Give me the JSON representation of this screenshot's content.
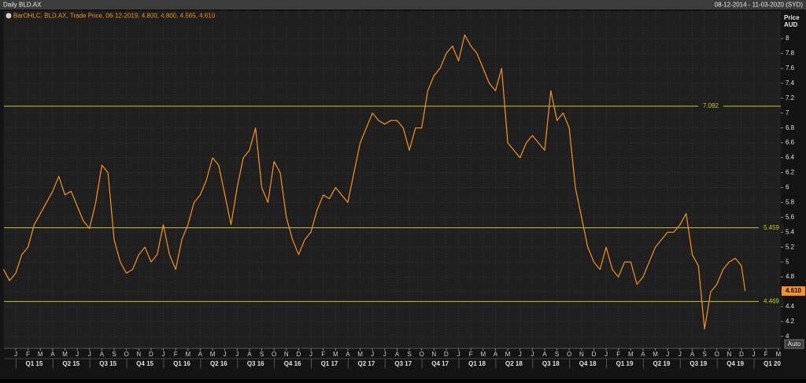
{
  "chart_data": {
    "type": "line",
    "title": "Daily BLD.AX",
    "date_range": "08-12-2014 - 11-03-2020 (SYD)",
    "legend_text": "BarOHLC, BLD.AX, Trade Price, 06-12-2019, 4.800, 4.800, 4.565, 4.610",
    "y_axis_label": "Price",
    "y_axis_unit": "AUD",
    "button": "Auto",
    "grid": true,
    "xlim": [
      -0.96,
      62.2
    ],
    "ylim": [
      3.84,
      8.37
    ],
    "yticks": [
      4,
      4.2,
      4.4,
      4.6,
      4.8,
      5,
      5.2,
      5.4,
      5.6,
      5.8,
      6,
      6.2,
      6.4,
      6.6,
      6.8,
      7,
      7.2,
      7.4,
      7.6,
      7.8,
      8
    ],
    "xticks": [
      {
        "value": 0,
        "label": "J"
      },
      {
        "value": 1,
        "label": "F"
      },
      {
        "value": 2,
        "label": "M"
      },
      {
        "value": 3,
        "label": "A"
      },
      {
        "value": 4,
        "label": "M"
      },
      {
        "value": 5,
        "label": "J"
      },
      {
        "value": 6,
        "label": "J"
      },
      {
        "value": 7,
        "label": "A"
      },
      {
        "value": 8,
        "label": "S"
      },
      {
        "value": 9,
        "label": "O"
      },
      {
        "value": 10,
        "label": "N"
      },
      {
        "value": 11,
        "label": "D"
      },
      {
        "value": 12,
        "label": "J"
      },
      {
        "value": 13,
        "label": "F"
      },
      {
        "value": 14,
        "label": "M"
      },
      {
        "value": 15,
        "label": "A"
      },
      {
        "value": 16,
        "label": "M"
      },
      {
        "value": 17,
        "label": "J"
      },
      {
        "value": 18,
        "label": "J"
      },
      {
        "value": 19,
        "label": "A"
      },
      {
        "value": 20,
        "label": "S"
      },
      {
        "value": 21,
        "label": "O"
      },
      {
        "value": 22,
        "label": "N"
      },
      {
        "value": 23,
        "label": "D"
      },
      {
        "value": 24,
        "label": "J"
      },
      {
        "value": 25,
        "label": "F"
      },
      {
        "value": 26,
        "label": "M"
      },
      {
        "value": 27,
        "label": "A"
      },
      {
        "value": 28,
        "label": "M"
      },
      {
        "value": 29,
        "label": "J"
      },
      {
        "value": 30,
        "label": "J"
      },
      {
        "value": 31,
        "label": "A"
      },
      {
        "value": 32,
        "label": "S"
      },
      {
        "value": 33,
        "label": "O"
      },
      {
        "value": 34,
        "label": "N"
      },
      {
        "value": 35,
        "label": "D"
      },
      {
        "value": 36,
        "label": "J"
      },
      {
        "value": 37,
        "label": "F"
      },
      {
        "value": 38,
        "label": "M"
      },
      {
        "value": 39,
        "label": "A"
      },
      {
        "value": 40,
        "label": "M"
      },
      {
        "value": 41,
        "label": "J"
      },
      {
        "value": 42,
        "label": "J"
      },
      {
        "value": 43,
        "label": "A"
      },
      {
        "value": 44,
        "label": "S"
      },
      {
        "value": 45,
        "label": "O"
      },
      {
        "value": 46,
        "label": "N"
      },
      {
        "value": 47,
        "label": "D"
      },
      {
        "value": 48,
        "label": "J"
      },
      {
        "value": 49,
        "label": "F"
      },
      {
        "value": 50,
        "label": "M"
      },
      {
        "value": 51,
        "label": "A"
      },
      {
        "value": 52,
        "label": "M"
      },
      {
        "value": 53,
        "label": "J"
      },
      {
        "value": 54,
        "label": "J"
      },
      {
        "value": 55,
        "label": "A"
      },
      {
        "value": 56,
        "label": "S"
      },
      {
        "value": 57,
        "label": "O"
      },
      {
        "value": 58,
        "label": "N"
      },
      {
        "value": 59,
        "label": "D"
      },
      {
        "value": 60,
        "label": "J"
      },
      {
        "value": 61,
        "label": "F"
      },
      {
        "value": 62,
        "label": "M"
      }
    ],
    "quarters": [
      {
        "value": 1.5,
        "label": "Q1 15"
      },
      {
        "value": 4.5,
        "label": "Q2 15"
      },
      {
        "value": 7.5,
        "label": "Q3 15"
      },
      {
        "value": 10.5,
        "label": "Q4 15"
      },
      {
        "value": 13.5,
        "label": "Q1 16"
      },
      {
        "value": 16.5,
        "label": "Q2 16"
      },
      {
        "value": 19.5,
        "label": "Q3 16"
      },
      {
        "value": 22.5,
        "label": "Q4 16"
      },
      {
        "value": 25.5,
        "label": "Q1 17"
      },
      {
        "value": 28.5,
        "label": "Q2 17"
      },
      {
        "value": 31.5,
        "label": "Q3 17"
      },
      {
        "value": 34.5,
        "label": "Q4 17"
      },
      {
        "value": 37.5,
        "label": "Q1 18"
      },
      {
        "value": 40.5,
        "label": "Q2 18"
      },
      {
        "value": 43.5,
        "label": "Q3 18"
      },
      {
        "value": 46.5,
        "label": "Q4 18"
      },
      {
        "value": 49.5,
        "label": "Q1 19"
      },
      {
        "value": 52.5,
        "label": "Q2 19"
      },
      {
        "value": 55.5,
        "label": "Q3 19"
      },
      {
        "value": 58.5,
        "label": "Q4 19"
      },
      {
        "value": 61.5,
        "label": "Q1 20"
      }
    ],
    "levels": [
      7.092,
      5.459,
      4.469
    ],
    "level_color": "#c8c81e",
    "last_value": {
      "value": 4.61,
      "label": "4.610"
    },
    "x": [
      -1,
      -0.5,
      0,
      0.5,
      1,
      1.5,
      2,
      2.5,
      3,
      3.5,
      4,
      4.5,
      5,
      5.5,
      6,
      6.5,
      7,
      7.5,
      8,
      8.5,
      9,
      9.5,
      10,
      10.5,
      11,
      11.5,
      12,
      12.5,
      13,
      13.5,
      14,
      14.5,
      15,
      15.5,
      16,
      16.5,
      17,
      17.5,
      18,
      18.5,
      19,
      19.5,
      20,
      20.5,
      21,
      21.5,
      22,
      22.5,
      23,
      23.5,
      24,
      24.5,
      25,
      25.5,
      26,
      26.5,
      27,
      27.5,
      28,
      28.5,
      29,
      29.5,
      30,
      30.5,
      31,
      31.5,
      32,
      32.5,
      33,
      33.5,
      34,
      34.5,
      35,
      35.5,
      36,
      36.5,
      37,
      37.5,
      38,
      38.5,
      39,
      39.5,
      40,
      40.5,
      41,
      41.5,
      42,
      42.5,
      43,
      43.5,
      44,
      44.5,
      45,
      45.5,
      46,
      46.5,
      47,
      47.5,
      48,
      48.5,
      49,
      49.5,
      50,
      50.5,
      51,
      51.5,
      52,
      52.5,
      53,
      53.5,
      54,
      54.5,
      55,
      55.5,
      56,
      56.5,
      57,
      57.5,
      58,
      58.5,
      59,
      59.3
    ],
    "series": [
      {
        "name": "BLD.AX",
        "color": "#f7931e",
        "values": [
          4.9,
          4.75,
          4.85,
          5.1,
          5.2,
          5.5,
          5.65,
          5.8,
          5.95,
          6.15,
          5.9,
          5.95,
          5.75,
          5.55,
          5.45,
          5.8,
          6.3,
          6.2,
          5.3,
          5.0,
          4.85,
          4.9,
          5.1,
          5.2,
          5.0,
          5.1,
          5.5,
          5.1,
          4.9,
          5.3,
          5.5,
          5.8,
          5.9,
          6.1,
          6.4,
          6.3,
          5.9,
          5.5,
          6.0,
          6.4,
          6.5,
          6.8,
          6.0,
          5.8,
          6.35,
          6.2,
          5.6,
          5.3,
          5.1,
          5.3,
          5.4,
          5.7,
          5.9,
          5.85,
          6.0,
          5.9,
          5.8,
          6.2,
          6.6,
          6.8,
          7.0,
          6.9,
          6.85,
          6.9,
          6.9,
          6.8,
          6.5,
          6.8,
          6.8,
          7.3,
          7.5,
          7.6,
          7.8,
          7.9,
          7.7,
          8.05,
          7.9,
          7.8,
          7.6,
          7.4,
          7.3,
          7.6,
          6.6,
          6.5,
          6.4,
          6.6,
          6.7,
          6.6,
          6.5,
          7.3,
          6.9,
          7.0,
          6.8,
          6.0,
          5.6,
          5.2,
          5.0,
          4.9,
          5.2,
          4.9,
          4.8,
          5.0,
          5.0,
          4.7,
          4.8,
          5.0,
          5.2,
          5.3,
          5.4,
          5.4,
          5.5,
          5.65,
          5.1,
          4.95,
          4.1,
          4.6,
          4.7,
          4.9,
          5.0,
          5.05,
          4.95,
          4.61
        ]
      }
    ]
  }
}
